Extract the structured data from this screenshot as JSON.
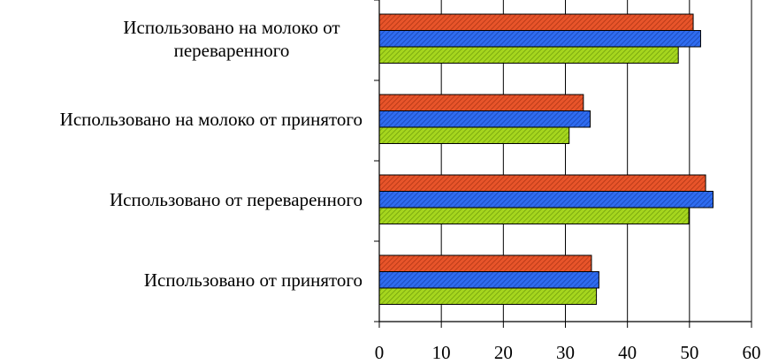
{
  "chart_data": {
    "type": "bar",
    "orientation": "horizontal",
    "categories": [
      [
        "Использовано на молоко от",
        "переваренного"
      ],
      [
        "Использовано на молоко от принятого"
      ],
      [
        "Использовано от переваренного"
      ],
      [
        "Использовано от принятого"
      ]
    ],
    "series": [
      {
        "values": [
          50.6,
          32.9,
          52.6,
          34.2
        ],
        "color": "#e8542a",
        "hatch": "orange-red"
      },
      {
        "values": [
          51.8,
          34.0,
          53.8,
          35.4
        ],
        "color": "#2f6cf0",
        "hatch": "blue"
      },
      {
        "values": [
          48.2,
          30.6,
          49.9,
          35.0
        ],
        "color": "#9ccc1c",
        "hatch": "green"
      }
    ],
    "xlim": [
      0,
      60
    ],
    "xticks": [
      "0",
      "10",
      "20",
      "30",
      "40",
      "50",
      "60"
    ],
    "grid": "vertical",
    "legend": "none"
  }
}
